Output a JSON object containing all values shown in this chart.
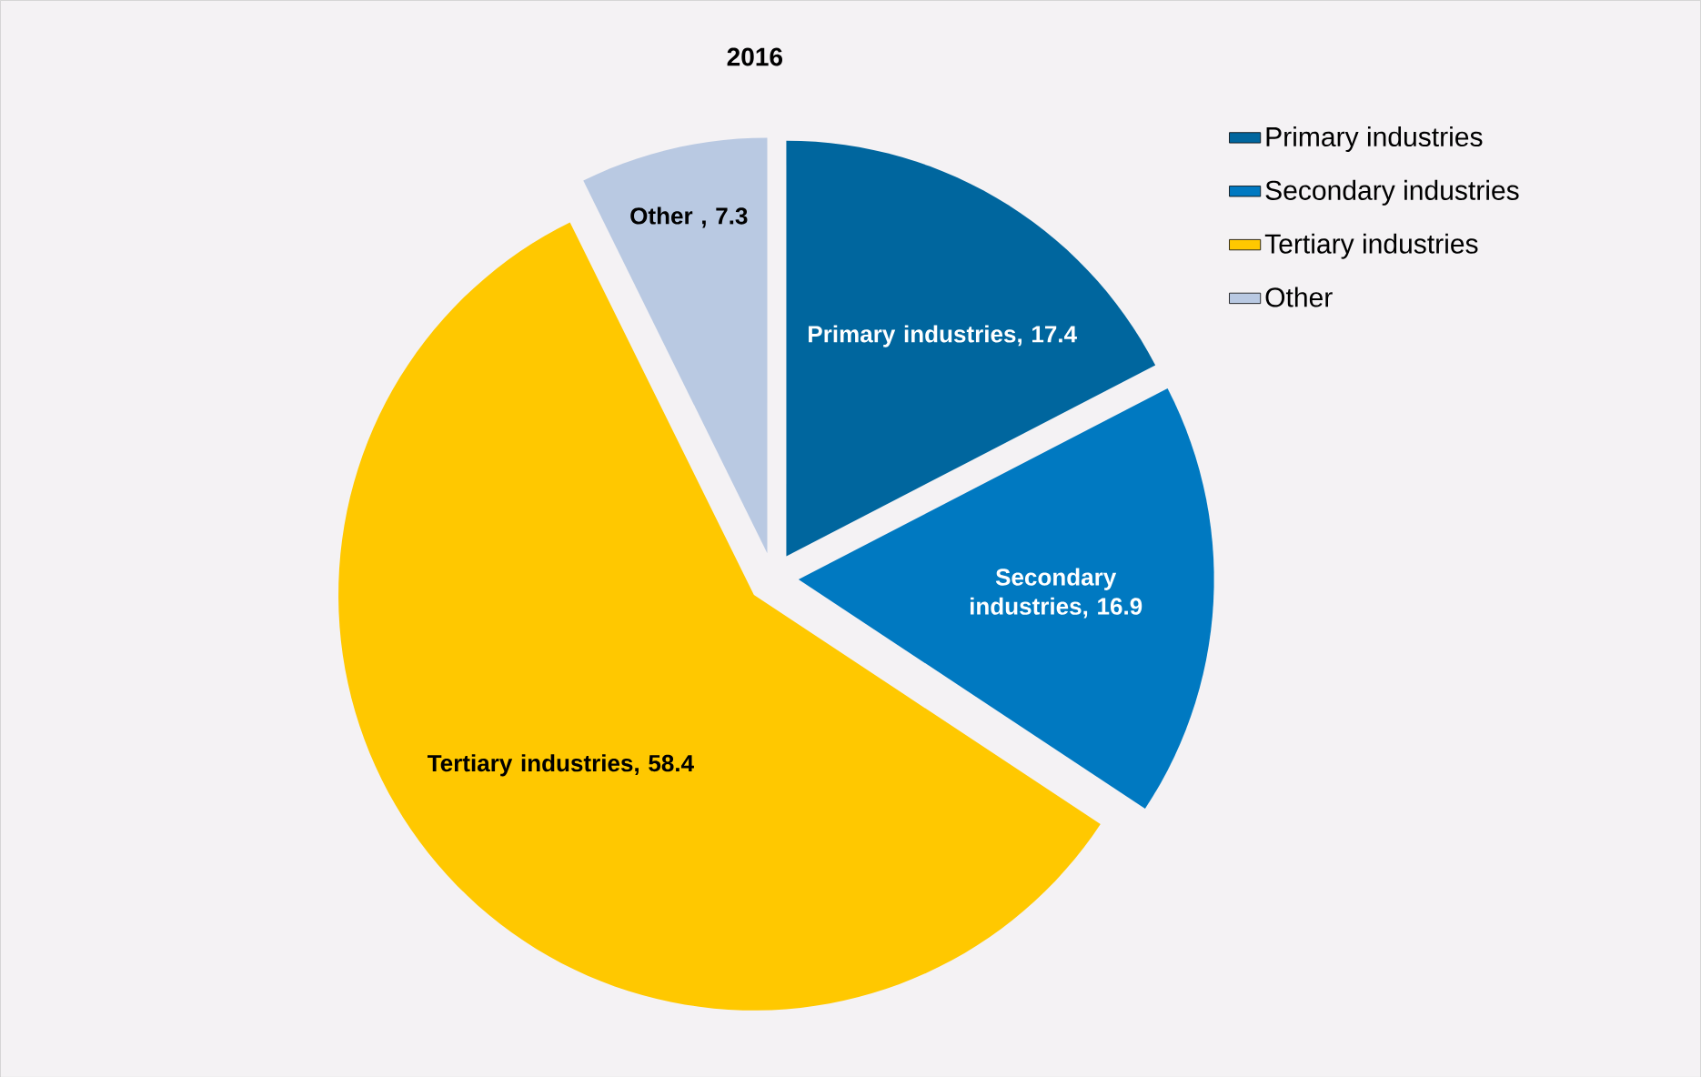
{
  "chart_data": {
    "type": "pie",
    "title": "2016",
    "categories": [
      "Primary industries",
      "Secondary industries",
      "Tertiary industries",
      "Other"
    ],
    "values": [
      17.4,
      16.9,
      58.4,
      7.3
    ],
    "colors": [
      "#00669e",
      "#0079c1",
      "#ffc800",
      "#b9c9e2"
    ],
    "value_labels": [
      "Primary industries, 17.4",
      "Secondary industries, 16.9",
      "Tertiary industries, 58.4",
      "Other , 7.3"
    ],
    "legend": "top right"
  }
}
